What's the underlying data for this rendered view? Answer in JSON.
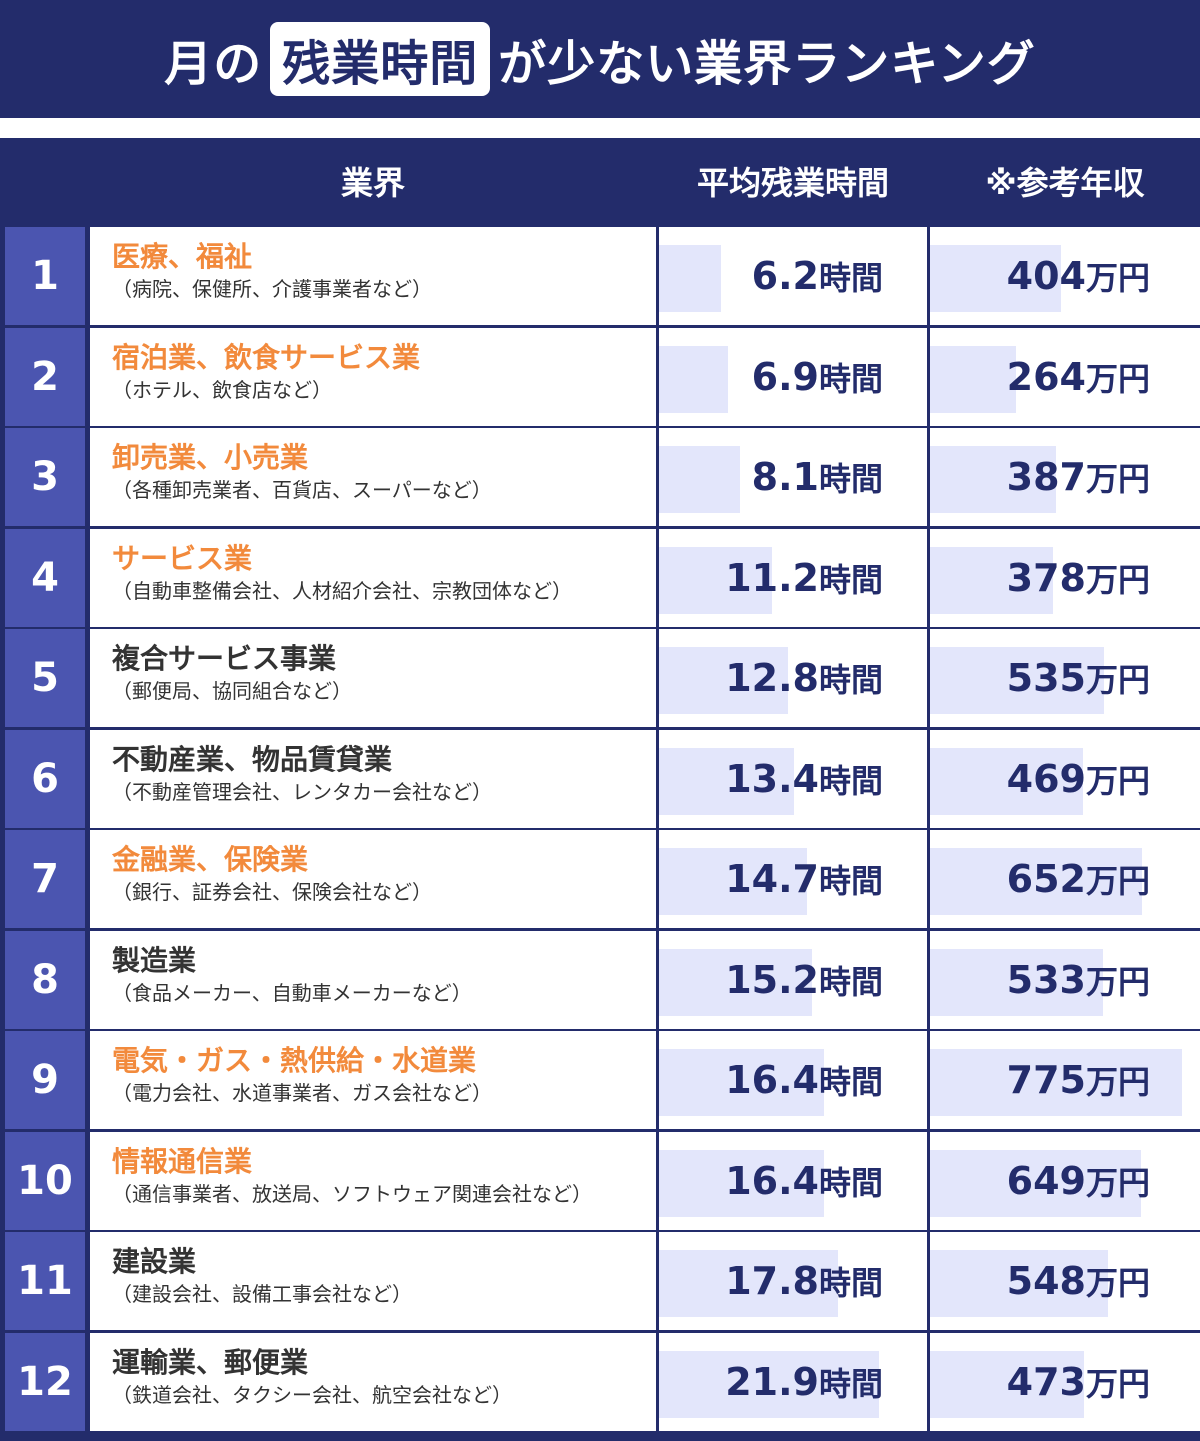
{
  "title": {
    "pre": "月の",
    "highlight": "残業時間",
    "post": "が少ない業界ランキング"
  },
  "headers": {
    "rank": "",
    "industry": "業界",
    "hours": "平均残業時間",
    "salary": "※参考年収"
  },
  "colors": {
    "navy": "#232c6b",
    "rank_bg": "#4b55b0",
    "bar": "#e3e6fb",
    "orange": "#f28a3c",
    "dark_text": "#333333"
  },
  "chart_data": {
    "type": "table",
    "hours_unit": "時間",
    "salary_unit": "万円",
    "rows": [
      {
        "rank": "1",
        "industry": "医療、福祉",
        "examples": "（病院、保健所、介護事業者など）",
        "highlight": true,
        "hours": 6.2,
        "hours_label": "6.2",
        "salary": 404,
        "salary_label": "404"
      },
      {
        "rank": "2",
        "industry": "宿泊業、飲食サービス業",
        "examples": "（ホテル、飲食店など）",
        "highlight": true,
        "hours": 6.9,
        "hours_label": "6.9",
        "salary": 264,
        "salary_label": "264"
      },
      {
        "rank": "3",
        "industry": "卸売業、小売業",
        "examples": "（各種卸売業者、百貨店、スーパーなど）",
        "highlight": true,
        "hours": 8.1,
        "hours_label": "8.1",
        "salary": 387,
        "salary_label": "387"
      },
      {
        "rank": "4",
        "industry": "サービス業",
        "examples": "（自動車整備会社、人材紹介会社、宗教団体など）",
        "highlight": true,
        "hours": 11.2,
        "hours_label": "11.2",
        "salary": 378,
        "salary_label": "378"
      },
      {
        "rank": "5",
        "industry": "複合サービス事業",
        "examples": "（郵便局、協同組合など）",
        "highlight": false,
        "hours": 12.8,
        "hours_label": "12.8",
        "salary": 535,
        "salary_label": "535"
      },
      {
        "rank": "6",
        "industry": "不動産業、物品賃貸業",
        "examples": "（不動産管理会社、レンタカー会社など）",
        "highlight": false,
        "hours": 13.4,
        "hours_label": "13.4",
        "salary": 469,
        "salary_label": "469"
      },
      {
        "rank": "7",
        "industry": "金融業、保険業",
        "examples": "（銀行、証券会社、保険会社など）",
        "highlight": true,
        "hours": 14.7,
        "hours_label": "14.7",
        "salary": 652,
        "salary_label": "652"
      },
      {
        "rank": "8",
        "industry": "製造業",
        "examples": "（食品メーカー、自動車メーカーなど）",
        "highlight": false,
        "hours": 15.2,
        "hours_label": "15.2",
        "salary": 533,
        "salary_label": "533"
      },
      {
        "rank": "9",
        "industry": "電気・ガス・熱供給・水道業",
        "examples": "（電力会社、水道事業者、ガス会社など）",
        "highlight": true,
        "hours": 16.4,
        "hours_label": "16.4",
        "salary": 775,
        "salary_label": "775"
      },
      {
        "rank": "10",
        "industry": "情報通信業",
        "examples": "（通信事業者、放送局、ソフトウェア関連会社など）",
        "highlight": true,
        "hours": 16.4,
        "hours_label": "16.4",
        "salary": 649,
        "salary_label": "649"
      },
      {
        "rank": "11",
        "industry": "建設業",
        "examples": "（建設会社、設備工事会社など）",
        "highlight": false,
        "hours": 17.8,
        "hours_label": "17.8",
        "salary": 548,
        "salary_label": "548"
      },
      {
        "rank": "12",
        "industry": "運輸業、郵便業",
        "examples": "（鉄道会社、タクシー会社、航空会社など）",
        "highlight": false,
        "hours": 21.9,
        "hours_label": "21.9",
        "salary": 473,
        "salary_label": "473"
      }
    ]
  }
}
